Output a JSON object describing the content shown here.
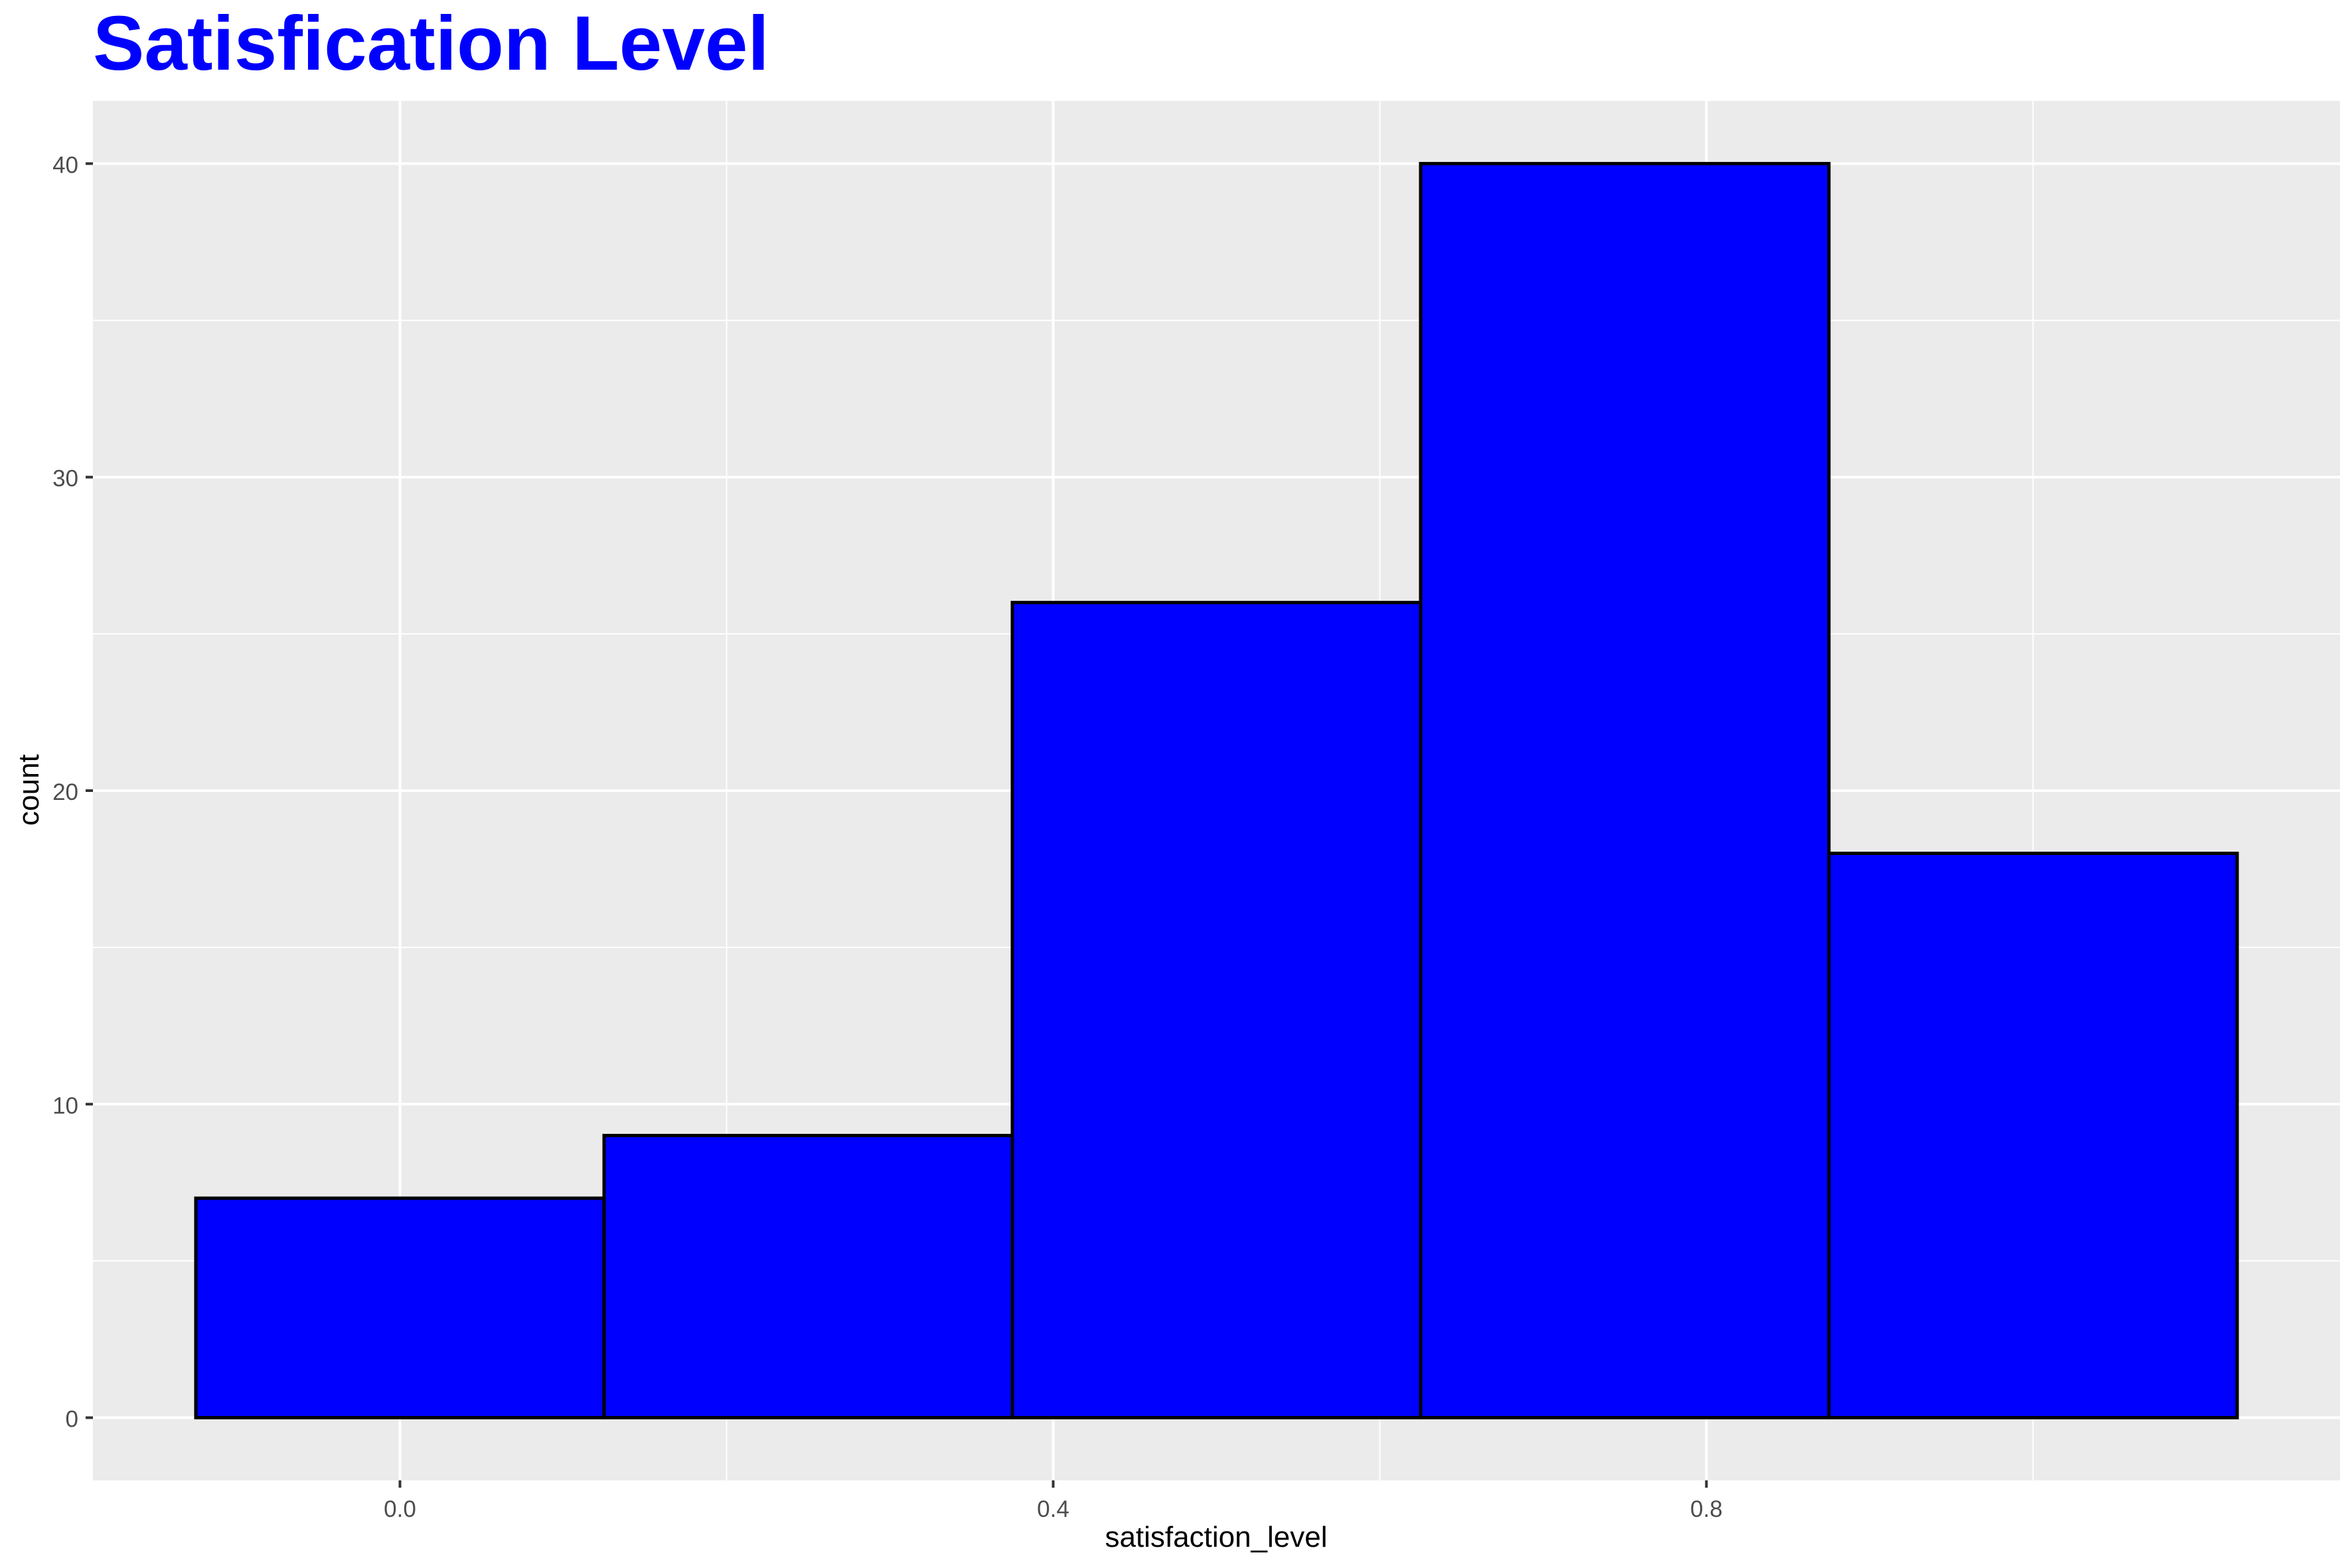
{
  "chart_data": {
    "type": "bar",
    "title": "Satisfication Level",
    "xlabel": "satisfaction_level",
    "ylabel": "count",
    "bins": [
      {
        "x0": -0.125,
        "x1": 0.125,
        "count": 7
      },
      {
        "x0": 0.125,
        "x1": 0.375,
        "count": 9
      },
      {
        "x0": 0.375,
        "x1": 0.625,
        "count": 26
      },
      {
        "x0": 0.625,
        "x1": 0.875,
        "count": 40
      },
      {
        "x0": 0.875,
        "x1": 1.125,
        "count": 18
      }
    ],
    "xlim": [
      -0.188,
      1.188
    ],
    "ylim": [
      -2,
      42
    ],
    "x_ticks": [
      0.0,
      0.4,
      0.8
    ],
    "x_tick_labels": [
      "0.0",
      "0.4",
      "0.8"
    ],
    "x_minor_ticks": [
      0.2,
      0.6,
      1.0
    ],
    "y_ticks": [
      0,
      10,
      20,
      30,
      40
    ],
    "y_tick_labels": [
      "0",
      "10",
      "20",
      "30",
      "40"
    ],
    "y_minor_ticks": [
      5,
      15,
      25,
      35
    ],
    "grid": true,
    "legend": "none",
    "colors": {
      "title": "#0000FF",
      "bar_fill": "#0000FF",
      "bar_stroke": "#000000",
      "panel_bg": "#EBEBEB",
      "grid": "#FFFFFF",
      "tick_text": "#4D4D4D",
      "axis_title": "#000000"
    }
  }
}
